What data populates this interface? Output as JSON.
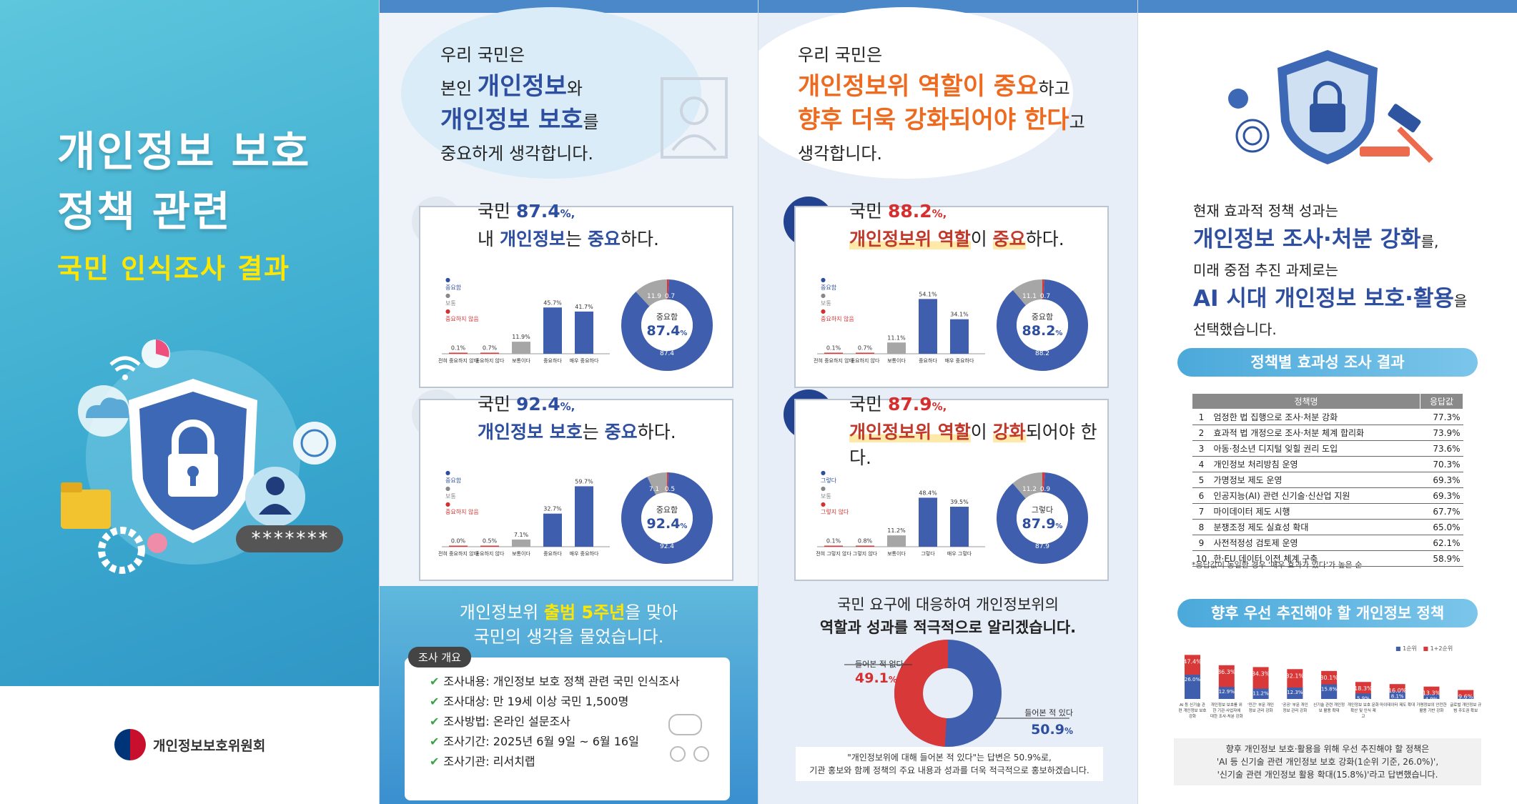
{
  "panel1": {
    "title_line1": "개인정보 보호",
    "title_line2": "정책 관련",
    "subtitle": "국민 인식조사 결과",
    "password_mask": "*******",
    "org_name": "개인정보보호위원회"
  },
  "panel2": {
    "head_line1": "우리 국민은",
    "head_pre": "본인 ",
    "head_hl1": "개인정보",
    "head_mid": "와",
    "head_hl2": "개인정보 보호",
    "head_end": "를",
    "head_line4": "중요하게 생각합니다.",
    "card1": {
      "pre": "국민 ",
      "pct": "87.4",
      "pct_unit": "%,",
      "line2_pre": "내 ",
      "line2_b": "개인정보",
      "line2_mid": "는 ",
      "line2_b2": "중요",
      "line2_end": "하다.",
      "legend": [
        "중요함",
        "보통",
        "중요하지 않음"
      ],
      "donut_center_label": "중요함",
      "donut_center_value": "87.4",
      "donut_center_unit": "%",
      "donut_bottom": "87.4",
      "donut_gray": "11.9",
      "donut_red": "0.7"
    },
    "card2": {
      "pre": "국민 ",
      "pct": "92.4",
      "pct_unit": "%,",
      "line2_b": "개인정보 보호",
      "line2_mid": "는 ",
      "line2_b2": "중요",
      "line2_end": "하다.",
      "legend": [
        "중요함",
        "보통",
        "중요하지 않음"
      ],
      "donut_center_label": "중요함",
      "donut_center_value": "92.4",
      "donut_center_unit": "%",
      "donut_bottom": "92.4",
      "donut_gray": "7.1",
      "donut_red": "0.5"
    },
    "bottom_pre": "개인정보위 ",
    "bottom_hl": "출범 5주년",
    "bottom_post": "을 맞아",
    "bottom_line2": "국민의 생각을 물었습니다.",
    "survey_tag": "조사 개요",
    "survey_items": [
      "조사내용: 개인정보 보호 정책 관련 국민 인식조사",
      "조사대상: 만 19세 이상 국민 1,500명",
      "조사방법: 온라인 설문조사",
      "조사기간: 2025년 6월 9일 ~ 6월 16일",
      "조사기관: 리서치랩"
    ]
  },
  "panel3": {
    "head_line1": "우리 국민은",
    "head_hl1": "개인정보위 역할이 중요",
    "head_mid": "하고",
    "head_hl2": "향후 더욱 강화되어야 한다",
    "head_end": "고",
    "head_line4": "생각합니다.",
    "card1": {
      "pre": "국민 ",
      "pct": "88.2",
      "pct_unit": "%,",
      "line2_hl": "개인정보위 역할",
      "line2_mid": "이 ",
      "line2_hl2": "중요",
      "line2_end": "하다.",
      "legend": [
        "중요함",
        "보통",
        "중요하지 않음"
      ],
      "donut_center_label": "중요함",
      "donut_center_value": "88.2",
      "donut_center_unit": "%",
      "donut_bottom": "88.2",
      "donut_gray": "11.1",
      "donut_red": "0.7"
    },
    "card2": {
      "pre": "국민 ",
      "pct": "87.9",
      "pct_unit": "%,",
      "line2_hl": "개인정보위 역할",
      "line2_mid": "이 ",
      "line2_hl2": "강화",
      "line2_end": "되어야 한다.",
      "legend": [
        "그렇다",
        "보통",
        "그렇지 않다"
      ],
      "donut_center_label": "그렇다",
      "donut_center_value": "87.9",
      "donut_center_unit": "%",
      "donut_bottom": "87.9",
      "donut_gray": "11.2",
      "donut_red": "0.9"
    },
    "q_line1": "국민 요구에 대응하여 개인정보위의",
    "q_line2": "역할과 성과를 적극적으로 알리겠습니다.",
    "heard_no_label": "들어본 적 없다",
    "heard_no_value": "49.1",
    "heard_yes_label": "들어본 적 있다",
    "heard_yes_value": "50.9",
    "pct_sign": "%",
    "note_line1": "\"개인정보위에 대해 들어본 적 있다\"는 답변은 50.9%로,",
    "note_line2": "기관 홍보와 함께 정책의 주요 내용과 성과를 더욱 적극적으로 홍보하겠습니다."
  },
  "panel4": {
    "head_line1": "현재 효과적 정책 성과는",
    "head_hl1": "개인정보 조사·처분 강화",
    "head_post1": "를,",
    "head_line3": "미래 중점 추진 과제로는",
    "head_hl2": "AI 시대 개인정보 보호·활용",
    "head_post2": "을",
    "head_line5": "선택했습니다.",
    "pill1": "정책별 효과성 조사 결과",
    "table_header_name": "정책명",
    "table_header_value": "응답값",
    "table_rows": [
      {
        "n": "1",
        "name": "엄정한 법 집행으로 조사·처분 강화",
        "v": "77.3%"
      },
      {
        "n": "2",
        "name": "효과적 법 개정으로 조사·처분 체계 합리화",
        "v": "73.9%"
      },
      {
        "n": "3",
        "name": "아동·청소년 디지털 잊힐 권리 도입",
        "v": "73.6%"
      },
      {
        "n": "4",
        "name": "개인정보 처리방침 운영",
        "v": "70.3%"
      },
      {
        "n": "5",
        "name": "가명정보 제도 운영",
        "v": "69.3%"
      },
      {
        "n": "6",
        "name": "인공지능(AI) 관련 신기술·신산업 지원",
        "v": "69.3%"
      },
      {
        "n": "7",
        "name": "마이데이터 제도 시행",
        "v": "67.7%"
      },
      {
        "n": "8",
        "name": "분쟁조정 제도 실효성 확대",
        "v": "65.0%"
      },
      {
        "n": "9",
        "name": "사전적정성 검토제 운영",
        "v": "62.1%"
      },
      {
        "n": "10",
        "name": "한·EU 데이터 이전 체계 구축",
        "v": "58.9%"
      }
    ],
    "table_note": "*응답값이 동일한 경우 '매우 효과가 있다'가 높은 순",
    "pill2": "향후 우선 추진해야 할 개인정보 정책",
    "legend_first": "1순위",
    "legend_total": "1+2순위",
    "note_line1": "향후 개인정보 보호·활용을 위해 우선 추진해야 할 정책은",
    "note_line2": "'AI 등 신기술 관련 개인정보 보호 강화(1순위 기준, 26.0%)',",
    "note_line3": "'신기술 관련 개인정보 활용 확대(15.8%)'라고 답변했습니다."
  },
  "chart_data": [
    {
      "type": "bar",
      "categories": [
        "전혀 중요하지 않다",
        "중요하지 않다",
        "보통이다",
        "중요하다",
        "매우 중요하다"
      ],
      "values": [
        0.1,
        0.7,
        11.9,
        45.7,
        41.7
      ],
      "value_labels": [
        "0.1%",
        "0.7%",
        "11.9%",
        "45.7%",
        "41.7%"
      ],
      "ylim": [
        0,
        60
      ]
    },
    {
      "type": "bar",
      "categories": [
        "전혀 중요하지 않다",
        "중요하지 않다",
        "보통이다",
        "중요하다",
        "매우 중요하다"
      ],
      "values": [
        0.0,
        0.5,
        7.1,
        32.7,
        59.7
      ],
      "value_labels": [
        "0.0%",
        "0.5%",
        "7.1%",
        "32.7%",
        "59.7%"
      ],
      "ylim": [
        0,
        60
      ]
    },
    {
      "type": "bar",
      "categories": [
        "전혀 중요하지 않다",
        "중요하지 않다",
        "보통이다",
        "중요하다",
        "매우 중요하다"
      ],
      "values": [
        0.1,
        0.7,
        11.1,
        54.1,
        34.1
      ],
      "value_labels": [
        "0.1%",
        "0.7%",
        "11.1%",
        "54.1%",
        "34.1%"
      ],
      "ylim": [
        0,
        60
      ]
    },
    {
      "type": "bar",
      "categories": [
        "전혀 그렇지 않다",
        "그렇지 않다",
        "보통이다",
        "그렇다",
        "매우 그렇다"
      ],
      "values": [
        0.1,
        0.8,
        11.2,
        48.4,
        39.5
      ],
      "value_labels": [
        "0.1%",
        "0.8%",
        "11.2%",
        "48.4%",
        "39.5%"
      ],
      "ylim": [
        0,
        60
      ]
    },
    {
      "type": "bar",
      "categories": [
        "AI 등 신기술 관련 개인정보 보호 강화",
        "개인정보 보호를 위한 기관·사업자에 대한 조사·처분 강화",
        "'민간' 부문 개인정보 관리 강화",
        "'공공' 부문 개인정보 관리 강화",
        "신기술 관련 개인정보 활용 확대",
        "개인정보 보호 문화 확산 및 인식 제고",
        "마이데이터 제도 확대",
        "가명정보의 안전한 활용 기반 강화",
        "글로벌 개인정보 규범 주도권 확보"
      ],
      "series": [
        {
          "name": "1순위",
          "values": [
            26.0,
            12.9,
            11.2,
            12.3,
            15.8,
            5.9,
            8.1,
            4.9,
            2.9
          ]
        },
        {
          "name": "1+2순위",
          "values": [
            47.4,
            36.3,
            34.3,
            32.1,
            30.1,
            18.3,
            16.0,
            13.3,
            9.6
          ]
        }
      ],
      "ylim": [
        0,
        50
      ]
    }
  ]
}
